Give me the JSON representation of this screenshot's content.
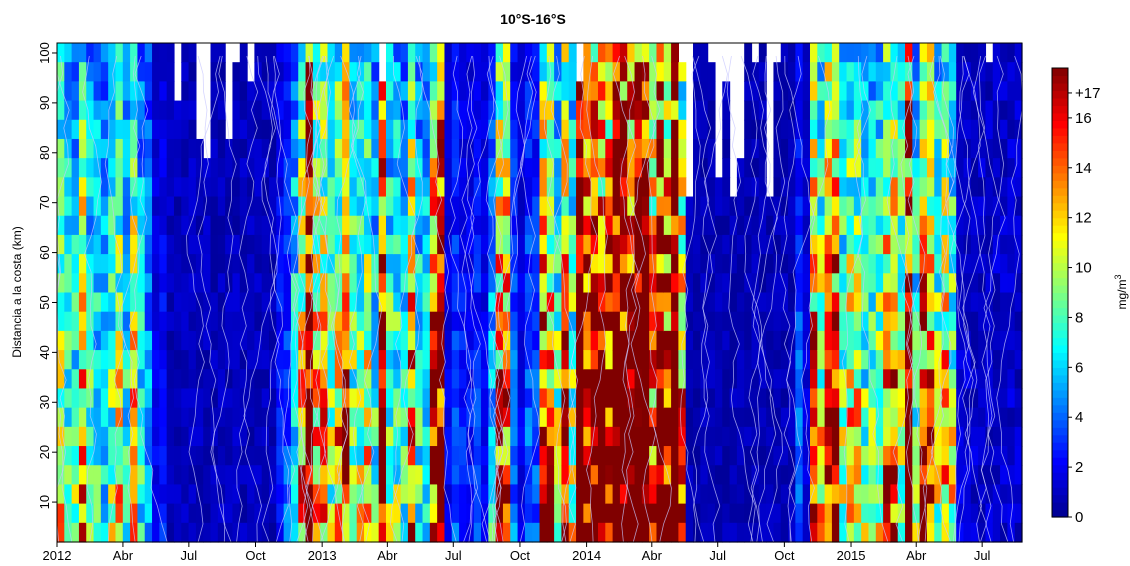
{
  "chart_data": {
    "type": "heatmap",
    "title": "10°S-16°S",
    "xlabel": "",
    "ylabel": "Distancia a la costa (km)",
    "x_range": [
      "2012-01-01",
      "2015-08-25"
    ],
    "ylim": [
      2,
      102
    ],
    "x_ticks": [
      {
        "date": "2012-01-01",
        "label": "2012"
      },
      {
        "date": "2012-04-01",
        "label": "Abr"
      },
      {
        "date": "2012-07-01",
        "label": "Jul"
      },
      {
        "date": "2012-10-01",
        "label": "Oct"
      },
      {
        "date": "2013-01-01",
        "label": "2013"
      },
      {
        "date": "2013-04-01",
        "label": "Abr"
      },
      {
        "date": "2013-07-01",
        "label": "Jul"
      },
      {
        "date": "2013-10-01",
        "label": "Oct"
      },
      {
        "date": "2014-01-01",
        "label": "2014"
      },
      {
        "date": "2014-04-01",
        "label": "Abr"
      },
      {
        "date": "2014-07-01",
        "label": "Jul"
      },
      {
        "date": "2014-10-01",
        "label": "Oct"
      },
      {
        "date": "2015-01-01",
        "label": "2015"
      },
      {
        "date": "2015-04-01",
        "label": "Abr"
      },
      {
        "date": "2015-07-01",
        "label": "Jul"
      }
    ],
    "y_ticks": [
      10,
      20,
      30,
      40,
      50,
      60,
      70,
      80,
      90,
      100
    ],
    "colorbar": {
      "unit_label": "mg/m",
      "unit_superscript": "3",
      "range": [
        0,
        18
      ],
      "ticks": [
        {
          "value": 0,
          "label": "0"
        },
        {
          "value": 2,
          "label": "2"
        },
        {
          "value": 4,
          "label": "4"
        },
        {
          "value": 6,
          "label": "6"
        },
        {
          "value": 8,
          "label": "8"
        },
        {
          "value": 10,
          "label": "10"
        },
        {
          "value": 12,
          "label": "12"
        },
        {
          "value": 14,
          "label": "14"
        },
        {
          "value": 16,
          "label": "16"
        },
        {
          "value": 17,
          "label": "+17"
        }
      ],
      "colors": [
        "#00008F",
        "#0000FF",
        "#0080FF",
        "#00FFFF",
        "#80FF80",
        "#FFFF00",
        "#FF8000",
        "#FF0000",
        "#800000"
      ]
    },
    "series_description_values": {
      "bloom_periods": [
        {
          "start": "2012-01-01",
          "end": "2012-05-15",
          "level": 5
        },
        {
          "start": "2012-11-15",
          "end": "2013-06-15",
          "level": 8
        },
        {
          "start": "2013-08-20",
          "end": "2013-09-20",
          "level": 6
        },
        {
          "start": "2013-11-01",
          "end": "2014-05-15",
          "level": 10
        },
        {
          "start": "2014-11-01",
          "end": "2015-05-30",
          "level": 8
        }
      ],
      "low_periods": [
        {
          "start": "2012-06-01",
          "end": "2012-11-01",
          "level": 0.6
        },
        {
          "start": "2014-05-20",
          "end": "2014-10-15",
          "level": 0.5
        },
        {
          "start": "2015-06-01",
          "end": "2015-08-25",
          "level": 0.8
        }
      ]
    },
    "grid": false
  }
}
